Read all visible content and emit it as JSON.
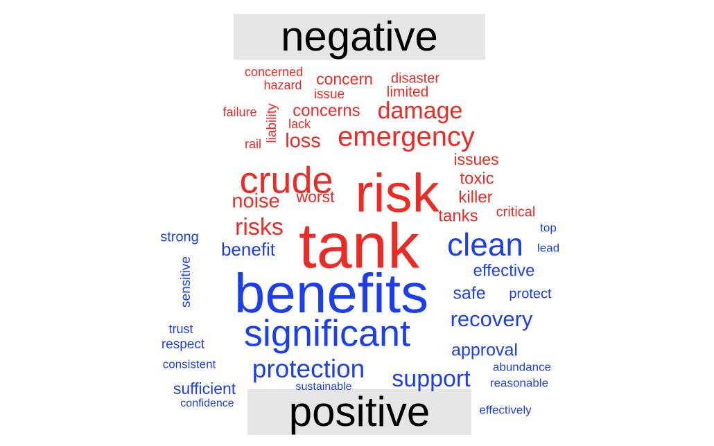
{
  "chart_data": {
    "type": "wordcloud",
    "groups": [
      {
        "label": "negative",
        "color": "#ee2a24",
        "words": [
          {
            "text": "tank",
            "weight": 100
          },
          {
            "text": "risk",
            "weight": 85
          },
          {
            "text": "crude",
            "weight": 62
          },
          {
            "text": "emergency",
            "weight": 42
          },
          {
            "text": "damage",
            "weight": 36
          },
          {
            "text": "risks",
            "weight": 36
          },
          {
            "text": "noise",
            "weight": 30
          },
          {
            "text": "loss",
            "weight": 30
          },
          {
            "text": "concerns",
            "weight": 26
          },
          {
            "text": "tanks",
            "weight": 26
          },
          {
            "text": "killer",
            "weight": 25
          },
          {
            "text": "toxic",
            "weight": 25
          },
          {
            "text": "issues",
            "weight": 24
          },
          {
            "text": "worst",
            "weight": 24
          },
          {
            "text": "concern",
            "weight": 24
          },
          {
            "text": "limited",
            "weight": 22
          },
          {
            "text": "disaster",
            "weight": 21
          },
          {
            "text": "critical",
            "weight": 21
          },
          {
            "text": "issue",
            "weight": 20
          },
          {
            "text": "liability",
            "weight": 19
          },
          {
            "text": "hazard",
            "weight": 18
          },
          {
            "text": "concerned",
            "weight": 18
          },
          {
            "text": "failure",
            "weight": 18
          },
          {
            "text": "lack",
            "weight": 18
          },
          {
            "text": "rail",
            "weight": 18
          }
        ]
      },
      {
        "label": "positive",
        "color": "#1b3ef0",
        "words": [
          {
            "text": "benefits",
            "weight": 100
          },
          {
            "text": "significant",
            "weight": 66
          },
          {
            "text": "clean",
            "weight": 56
          },
          {
            "text": "protection",
            "weight": 44
          },
          {
            "text": "support",
            "weight": 40
          },
          {
            "text": "recovery",
            "weight": 37
          },
          {
            "text": "benefit",
            "weight": 31
          },
          {
            "text": "safe",
            "weight": 30
          },
          {
            "text": "approval",
            "weight": 30
          },
          {
            "text": "effective",
            "weight": 29
          },
          {
            "text": "sufficient",
            "weight": 27
          },
          {
            "text": "strong",
            "weight": 24
          },
          {
            "text": "protect",
            "weight": 24
          },
          {
            "text": "sensitive",
            "weight": 23
          },
          {
            "text": "respect",
            "weight": 22
          },
          {
            "text": "trust",
            "weight": 21
          },
          {
            "text": "top",
            "weight": 20
          },
          {
            "text": "lead",
            "weight": 20
          },
          {
            "text": "consistent",
            "weight": 20
          },
          {
            "text": "abundance",
            "weight": 20
          },
          {
            "text": "effectively",
            "weight": 20
          },
          {
            "text": "reasonable",
            "weight": 19
          },
          {
            "text": "confidence",
            "weight": 18
          },
          {
            "text": "sustainable",
            "weight": 18
          }
        ]
      }
    ]
  }
}
